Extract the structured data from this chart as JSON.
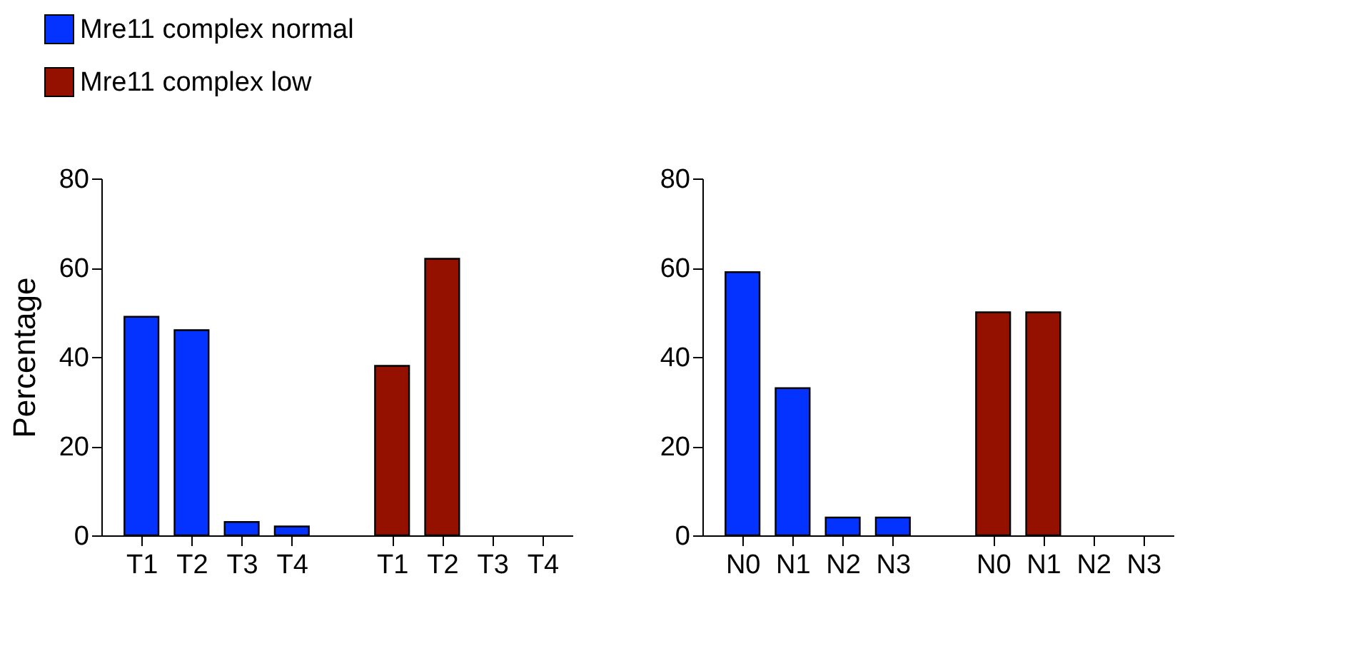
{
  "chart_data": [
    {
      "type": "bar",
      "ylabel": "Percentage",
      "categories": [
        "T1",
        "T2",
        "T3",
        "T4",
        "T1",
        "T2",
        "T3",
        "T4"
      ],
      "series": [
        {
          "name": "Mre11 complex normal",
          "color": "#0433ff",
          "values": [
            49,
            46,
            3,
            2,
            null,
            null,
            null,
            null
          ]
        },
        {
          "name": "Mre11 complex low",
          "color": "#941100",
          "values": [
            null,
            null,
            null,
            null,
            38,
            62,
            0,
            0
          ]
        }
      ],
      "ylim": [
        0,
        80
      ],
      "yticks": [
        0,
        20,
        40,
        60,
        80
      ],
      "grid": false,
      "legend": "top left"
    },
    {
      "type": "bar",
      "categories": [
        "N0",
        "N1",
        "N2",
        "N3",
        "N0",
        "N1",
        "N2",
        "N3"
      ],
      "series": [
        {
          "name": "Mre11 complex normal",
          "color": "#0433ff",
          "values": [
            59,
            33,
            4,
            4,
            null,
            null,
            null,
            null
          ]
        },
        {
          "name": "Mre11 complex low",
          "color": "#941100",
          "values": [
            null,
            null,
            null,
            null,
            50,
            50,
            0,
            0
          ]
        }
      ],
      "ylim": [
        0,
        80
      ],
      "yticks": [
        0,
        20,
        40,
        60,
        80
      ],
      "grid": false
    }
  ]
}
